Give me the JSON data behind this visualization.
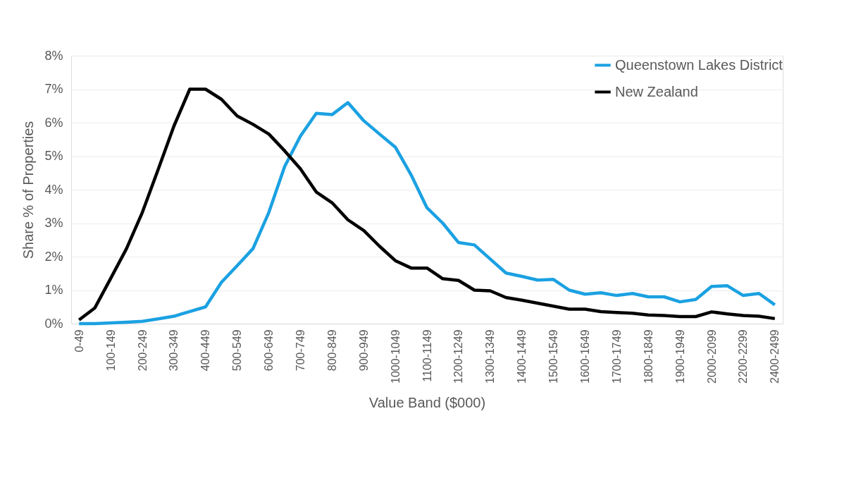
{
  "chart_data": {
    "type": "line",
    "xlabel": "Value Band ($000)",
    "ylabel": "Share % of Properties",
    "categories": [
      "0-49",
      null,
      "100-149",
      null,
      "200-249",
      null,
      "300-349",
      null,
      "400-449",
      null,
      "500-549",
      null,
      "600-649",
      null,
      "700-749",
      null,
      "800-849",
      null,
      "900-949",
      null,
      "1000-1049",
      null,
      "1100-1149",
      null,
      "1200-1249",
      null,
      "1300-1349",
      null,
      "1400-1449",
      null,
      "1500-1549",
      null,
      "1600-1649",
      null,
      "1700-1749",
      null,
      "1800-1849",
      null,
      "1900-1949",
      null,
      "2000-2099",
      null,
      "2200-2299",
      null,
      "2400-2499"
    ],
    "series": [
      {
        "name": "Queenstown Lakes District",
        "color": "#1ba1e2",
        "values": [
          0.0,
          0.0,
          0.02,
          0.04,
          0.07,
          0.14,
          0.22,
          0.36,
          0.5,
          1.23,
          1.73,
          2.24,
          3.32,
          4.69,
          5.6,
          6.28,
          6.24,
          6.6,
          6.06,
          5.66,
          5.27,
          4.44,
          3.46,
          3.0,
          2.42,
          2.35,
          1.93,
          1.51,
          1.41,
          1.3,
          1.32,
          1.0,
          0.88,
          0.92,
          0.84,
          0.9,
          0.8,
          0.8,
          0.65,
          0.72,
          1.11,
          1.13,
          0.84,
          0.9,
          0.56
        ]
      },
      {
        "name": "New Zealand",
        "color": "#000000",
        "values": [
          0.11,
          0.47,
          1.35,
          2.24,
          3.32,
          4.6,
          5.9,
          7.0,
          7.0,
          6.7,
          6.2,
          5.95,
          5.66,
          5.16,
          4.62,
          3.93,
          3.61,
          3.1,
          2.78,
          2.31,
          1.88,
          1.66,
          1.66,
          1.34,
          1.29,
          1.0,
          0.98,
          0.78,
          0.7,
          0.61,
          0.52,
          0.43,
          0.43,
          0.36,
          0.33,
          0.31,
          0.26,
          0.24,
          0.21,
          0.21,
          0.35,
          0.29,
          0.24,
          0.22,
          0.15
        ]
      }
    ],
    "ylim": [
      0,
      8
    ],
    "yticks": [
      {
        "value": 0,
        "label": "0%"
      },
      {
        "value": 1,
        "label": "1%"
      },
      {
        "value": 2,
        "label": "2%"
      },
      {
        "value": 3,
        "label": "3%"
      },
      {
        "value": 4,
        "label": "4%"
      },
      {
        "value": 5,
        "label": "5%"
      },
      {
        "value": 6,
        "label": "6%"
      },
      {
        "value": 7,
        "label": "7%"
      },
      {
        "value": 8,
        "label": "8%"
      }
    ],
    "grid": "y",
    "legend": "top right",
    "marker": "none",
    "line_style": "solid"
  }
}
